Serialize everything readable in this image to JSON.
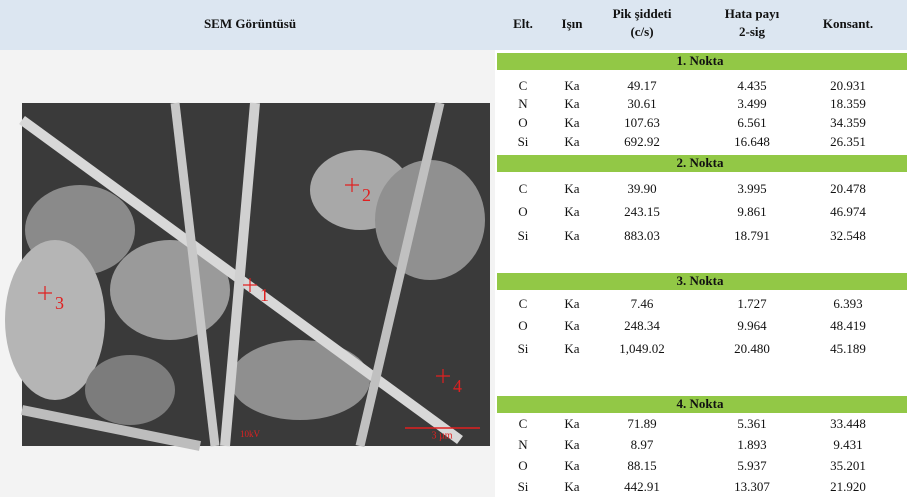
{
  "header": {
    "left_title": "SEM Görüntüsü",
    "columns": [
      [
        "Elt."
      ],
      [
        "Işın"
      ],
      [
        "Pik şiddeti",
        "(c/s)"
      ],
      [
        "Hata payı",
        "2-sig"
      ],
      [
        "Konsant."
      ]
    ]
  },
  "image": {
    "point_labels": [
      "1",
      "2",
      "3",
      "4"
    ],
    "voltage": "10kV",
    "scale": "3 µm"
  },
  "sections": [
    {
      "title": "1. Nokta",
      "rows": [
        [
          "C",
          "Ka",
          "49.17",
          "4.435",
          "20.931"
        ],
        [
          "N",
          "Ka",
          "30.61",
          "3.499",
          "18.359"
        ],
        [
          "O",
          "Ka",
          "107.63",
          "6.561",
          "34.359"
        ],
        [
          "Si",
          "Ka",
          "692.92",
          "16.648",
          "26.351"
        ]
      ]
    },
    {
      "title": "2. Nokta",
      "rows": [
        [
          "C",
          "Ka",
          "39.90",
          "3.995",
          "20.478"
        ],
        [
          "O",
          "Ka",
          "243.15",
          "9.861",
          "46.974"
        ],
        [
          "Si",
          "Ka",
          "883.03",
          "18.791",
          "32.548"
        ]
      ]
    },
    {
      "title": "3. Nokta",
      "rows": [
        [
          "C",
          "Ka",
          "7.46",
          "1.727",
          "6.393"
        ],
        [
          "O",
          "Ka",
          "248.34",
          "9.964",
          "48.419"
        ],
        [
          "Si",
          "Ka",
          "1,049.02",
          "20.480",
          "45.189"
        ]
      ]
    },
    {
      "title": "4. Nokta",
      "rows": [
        [
          "C",
          "Ka",
          "71.89",
          "5.361",
          "33.448"
        ],
        [
          "N",
          "Ka",
          "8.97",
          "1.893",
          "9.431"
        ],
        [
          "O",
          "Ka",
          "88.15",
          "5.937",
          "35.201"
        ],
        [
          "Si",
          "Ka",
          "442.91",
          "13.307",
          "21.920"
        ]
      ]
    }
  ]
}
